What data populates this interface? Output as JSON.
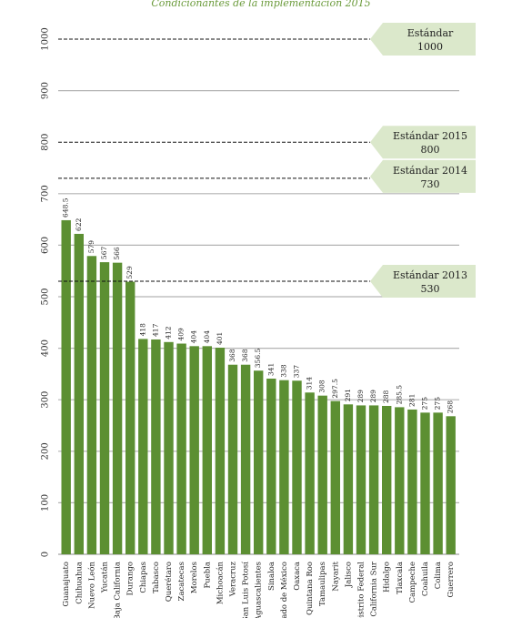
{
  "chart_data": {
    "type": "bar",
    "title": "Condicionantes de la implementación 2015",
    "xlabel": "",
    "ylabel": "",
    "ylim": [
      0,
      1000
    ],
    "yticks": [
      0,
      100,
      200,
      300,
      400,
      500,
      600,
      700,
      800,
      900,
      1000
    ],
    "grid": true,
    "colors": {
      "bar": "#5c8f32",
      "box": "#dbe8cb",
      "grid": "#b3b3b3",
      "title": "#6a9a3a"
    },
    "categories": [
      "Guanajuato",
      "Chihuahua",
      "Nuevo León",
      "Yucatán",
      "Baja California",
      "Durango",
      "Chiapas",
      "Tabasco",
      "Querétaro",
      "Zacatecas",
      "Morelos",
      "Puebla",
      "Michoacán",
      "Veracruz",
      "San Luis Potosí",
      "Aguascalientes",
      "Sinaloa",
      "Estado de México",
      "Oaxaca",
      "Quintana Roo",
      "Tamaulipas",
      "Nayarit",
      "Jalisco",
      "Distrito Federal",
      "Baja California Sur",
      "Hidalgo",
      "Tlaxcala",
      "Campeche",
      "Coahuila",
      "Colima",
      "Guerrero"
    ],
    "values": [
      648.5,
      622,
      579,
      567,
      566,
      529,
      418,
      417,
      412,
      409,
      404,
      404,
      401,
      368,
      368,
      356.5,
      341,
      338,
      337,
      314,
      308,
      297.5,
      291,
      289,
      289,
      288,
      285.5,
      281,
      275,
      275,
      268
    ],
    "value_labels": [
      "648.5",
      "622",
      "579",
      "567",
      "566",
      "529",
      "418",
      "417",
      "412",
      "409",
      "404",
      "404",
      "401",
      "368",
      "368",
      "356.5",
      "341",
      "338",
      "337",
      "314",
      "308",
      "297.5",
      "291",
      "289",
      "289",
      "288",
      "285.5",
      "281",
      "275",
      "275",
      "268"
    ],
    "reference_lines": [
      {
        "value": 1000,
        "label_line1": "Estándar",
        "label_line2": "1000"
      },
      {
        "value": 800,
        "label_line1": "Estándar 2015",
        "label_line2": "800"
      },
      {
        "value": 730,
        "label_line1": "Estándar 2014",
        "label_line2": "730"
      },
      {
        "value": 530,
        "label_line1": "Estándar 2013",
        "label_line2": "530"
      }
    ]
  }
}
